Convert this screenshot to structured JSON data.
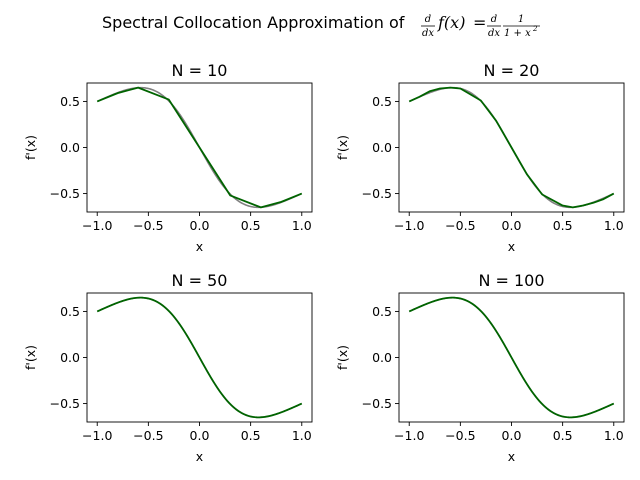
{
  "title": {
    "prefix": "Spectral Collocation Approximation of ",
    "d": "d",
    "dx": "dx",
    "fx": "f(x)",
    "eq": "=",
    "one": "1",
    "denom": "1 + x",
    "exp": "2"
  },
  "colors": {
    "exact": "#808080",
    "approx": "#006400"
  },
  "chart_data": [
    {
      "type": "line",
      "title": "N = 10",
      "xlabel": "x",
      "ylabel": "f'(x)",
      "xlim": [
        -1.1,
        1.1
      ],
      "ylim": [
        -0.7,
        0.7
      ],
      "xticks": [
        -1.0,
        -0.5,
        0.0,
        0.5,
        1.0
      ],
      "yticks": [
        -0.5,
        0.0,
        0.5
      ],
      "xtick_labels": [
        "−1.0",
        "−0.5",
        "0.0",
        "0.5",
        "1.0"
      ],
      "ytick_labels": [
        "−0.5",
        "0.0",
        "0.5"
      ],
      "series": [
        {
          "role": "exact",
          "function": "-2x/(1+x^2)^2",
          "x_range": [
            -1,
            1
          ]
        },
        {
          "role": "approx",
          "x": [
            -1.0,
            -0.8,
            -0.6,
            -0.3,
            0.0,
            0.3,
            0.6,
            0.8,
            1.0
          ],
          "y": [
            0.5,
            0.59,
            0.65,
            0.52,
            0.0,
            -0.52,
            -0.65,
            -0.59,
            -0.5
          ]
        }
      ]
    },
    {
      "type": "line",
      "title": "N = 20",
      "xlabel": "x",
      "ylabel": "f'(x)",
      "xlim": [
        -1.1,
        1.1
      ],
      "ylim": [
        -0.7,
        0.7
      ],
      "xticks": [
        -1.0,
        -0.5,
        0.0,
        0.5,
        1.0
      ],
      "yticks": [
        -0.5,
        0.0,
        0.5
      ],
      "xtick_labels": [
        "−1.0",
        "−0.5",
        "0.0",
        "0.5",
        "1.0"
      ],
      "ytick_labels": [
        "−0.5",
        "0.0",
        "0.5"
      ],
      "series": [
        {
          "role": "exact",
          "function": "-2x/(1+x^2)^2",
          "x_range": [
            -1,
            1
          ]
        },
        {
          "role": "approx",
          "x": [
            -1.0,
            -0.9,
            -0.8,
            -0.7,
            -0.6,
            -0.5,
            -0.3,
            -0.15,
            0.0,
            0.15,
            0.3,
            0.5,
            0.6,
            0.7,
            0.8,
            0.9,
            1.0
          ],
          "y": [
            0.5,
            0.55,
            0.61,
            0.64,
            0.65,
            0.64,
            0.51,
            0.29,
            0.0,
            -0.29,
            -0.51,
            -0.63,
            -0.65,
            -0.63,
            -0.6,
            -0.56,
            -0.5
          ]
        }
      ]
    },
    {
      "type": "line",
      "title": "N = 50",
      "xlabel": "x",
      "ylabel": "f'(x)",
      "xlim": [
        -1.1,
        1.1
      ],
      "ylim": [
        -0.7,
        0.7
      ],
      "xticks": [
        -1.0,
        -0.5,
        0.0,
        0.5,
        1.0
      ],
      "yticks": [
        -0.5,
        0.0,
        0.5
      ],
      "xtick_labels": [
        "−1.0",
        "−0.5",
        "0.0",
        "0.5",
        "1.0"
      ],
      "ytick_labels": [
        "−0.5",
        "0.0",
        "0.5"
      ],
      "series": [
        {
          "role": "exact",
          "function": "-2x/(1+x^2)^2",
          "x_range": [
            -1,
            1
          ]
        },
        {
          "role": "approx",
          "function": "-2x/(1+x^2)^2",
          "x_range": [
            -1,
            1
          ]
        }
      ]
    },
    {
      "type": "line",
      "title": "N = 100",
      "xlabel": "x",
      "ylabel": "f'(x)",
      "xlim": [
        -1.1,
        1.1
      ],
      "ylim": [
        -0.7,
        0.7
      ],
      "xticks": [
        -1.0,
        -0.5,
        0.0,
        0.5,
        1.0
      ],
      "yticks": [
        -0.5,
        0.0,
        0.5
      ],
      "xtick_labels": [
        "−1.0",
        "−0.5",
        "0.0",
        "0.5",
        "1.0"
      ],
      "ytick_labels": [
        "−0.5",
        "0.0",
        "0.5"
      ],
      "series": [
        {
          "role": "exact",
          "function": "-2x/(1+x^2)^2",
          "x_range": [
            -1,
            1
          ]
        },
        {
          "role": "approx",
          "function": "-2x/(1+x^2)^2",
          "x_range": [
            -1,
            1
          ]
        }
      ]
    }
  ]
}
